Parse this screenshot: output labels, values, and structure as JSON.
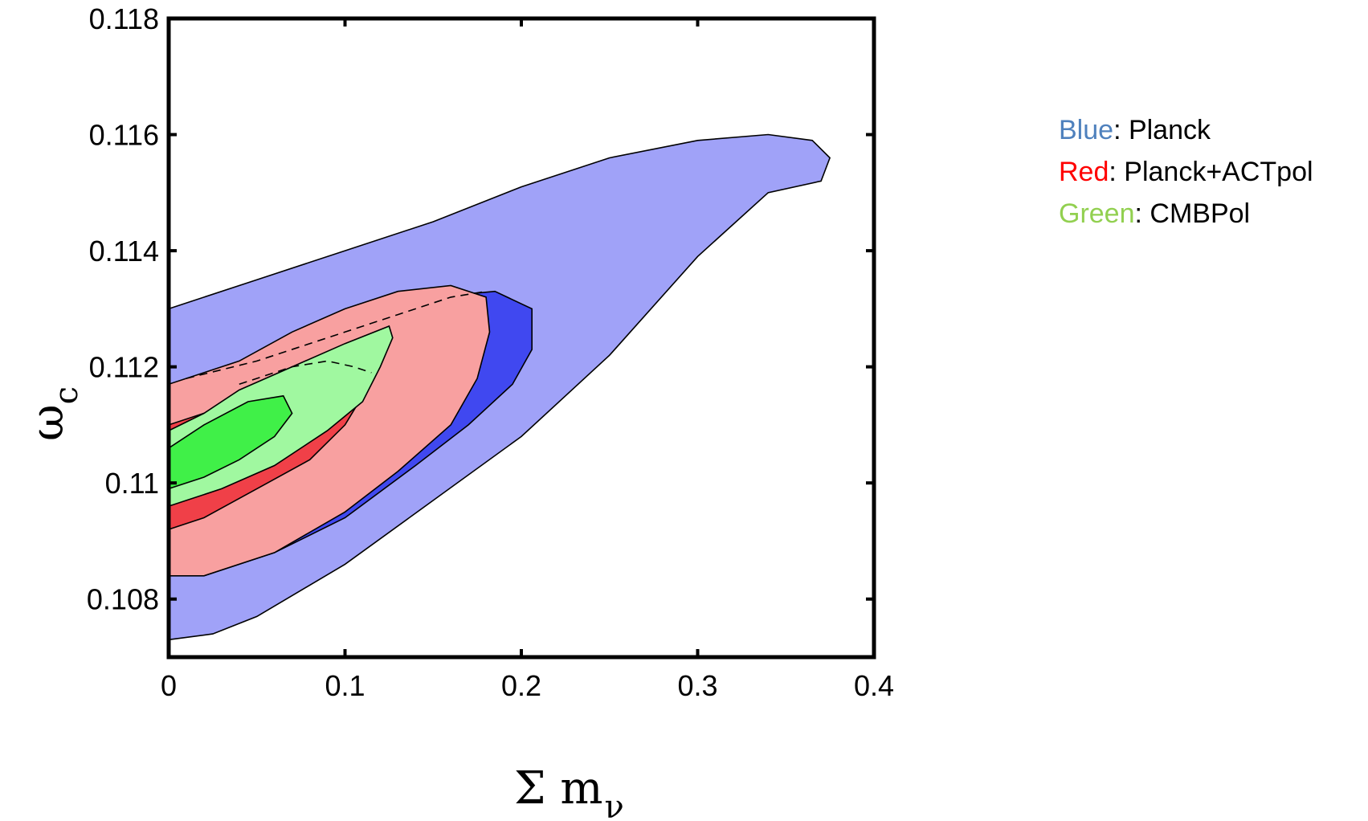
{
  "chart_data": {
    "type": "contour",
    "xlabel": "Σ m",
    "xlabel_sub": "ν",
    "ylabel": "ω",
    "ylabel_sub": "c",
    "xlim": [
      0,
      0.4
    ],
    "ylim": [
      0.107,
      0.118
    ],
    "xticks": [
      0,
      0.1,
      0.2,
      0.3,
      0.4
    ],
    "xtick_labels": [
      "0",
      "0.1",
      "0.2",
      "0.3",
      "0.4"
    ],
    "yticks": [
      0.108,
      0.11,
      0.112,
      0.114,
      0.116,
      0.118
    ],
    "ytick_labels": [
      "0.108",
      "0.11",
      "0.112",
      "0.114",
      "0.116",
      "0.118"
    ],
    "grid": false,
    "legend_placement": "right",
    "series": [
      {
        "name": "Blue",
        "color": "#a0a2f8",
        "level": "outer",
        "contour": [
          [
            0,
            0.1073
          ],
          [
            0.025,
            0.1074
          ],
          [
            0.05,
            0.1077
          ],
          [
            0.1,
            0.1086
          ],
          [
            0.15,
            0.1097
          ],
          [
            0.2,
            0.1108
          ],
          [
            0.25,
            0.1122
          ],
          [
            0.3,
            0.1139
          ],
          [
            0.34,
            0.115
          ],
          [
            0.37,
            0.1152
          ],
          [
            0.375,
            0.1156
          ],
          [
            0.365,
            0.1159
          ],
          [
            0.34,
            0.116
          ],
          [
            0.3,
            0.1159
          ],
          [
            0.25,
            0.1156
          ],
          [
            0.2,
            0.1151
          ],
          [
            0.15,
            0.1145
          ],
          [
            0.1,
            0.114
          ],
          [
            0.05,
            0.1135
          ],
          [
            0,
            0.113
          ]
        ]
      },
      {
        "name": "Blue",
        "color": "#4048f0",
        "level": "inner",
        "contour": [
          [
            0.02,
            0.1084
          ],
          [
            0.06,
            0.1088
          ],
          [
            0.1,
            0.1094
          ],
          [
            0.14,
            0.1103
          ],
          [
            0.17,
            0.111
          ],
          [
            0.195,
            0.1117
          ],
          [
            0.206,
            0.1123
          ],
          [
            0.206,
            0.113
          ],
          [
            0.185,
            0.1133
          ],
          [
            0.15,
            0.1132
          ],
          [
            0.06,
            0.1096
          ]
        ]
      },
      {
        "name": "Red",
        "color": "#f8a0a0",
        "level": "outer",
        "contour": [
          [
            0,
            0.1084
          ],
          [
            0.02,
            0.1084
          ],
          [
            0.06,
            0.1088
          ],
          [
            0.1,
            0.1095
          ],
          [
            0.13,
            0.1102
          ],
          [
            0.16,
            0.111
          ],
          [
            0.175,
            0.1118
          ],
          [
            0.182,
            0.1126
          ],
          [
            0.18,
            0.1132
          ],
          [
            0.16,
            0.1134
          ],
          [
            0.13,
            0.1133
          ],
          [
            0.1,
            0.113
          ],
          [
            0.07,
            0.1126
          ],
          [
            0.04,
            0.1121
          ],
          [
            0.02,
            0.1119
          ],
          [
            0,
            0.1117
          ]
        ]
      },
      {
        "name": "Red",
        "color": "#f04048",
        "level": "inner",
        "contour": [
          [
            0,
            0.1092
          ],
          [
            0.02,
            0.1094
          ],
          [
            0.05,
            0.1099
          ],
          [
            0.08,
            0.1104
          ],
          [
            0.1,
            0.111
          ],
          [
            0.11,
            0.1115
          ],
          [
            0.115,
            0.112
          ],
          [
            0.11,
            0.1122
          ],
          [
            0.09,
            0.112
          ],
          [
            0.06,
            0.1117
          ],
          [
            0.03,
            0.1113
          ],
          [
            0,
            0.111
          ]
        ]
      },
      {
        "name": "Green",
        "color": "#a0f8a0",
        "level": "outer",
        "contour": [
          [
            0,
            0.1096
          ],
          [
            0.03,
            0.1099
          ],
          [
            0.06,
            0.1103
          ],
          [
            0.09,
            0.1109
          ],
          [
            0.11,
            0.1114
          ],
          [
            0.12,
            0.112
          ],
          [
            0.127,
            0.1125
          ],
          [
            0.125,
            0.1127
          ],
          [
            0.1,
            0.1124
          ],
          [
            0.07,
            0.112
          ],
          [
            0.04,
            0.1116
          ],
          [
            0.02,
            0.1112
          ],
          [
            0,
            0.1109
          ]
        ]
      },
      {
        "name": "Green",
        "color": "#40f048",
        "level": "inner",
        "contour": [
          [
            0,
            0.1099
          ],
          [
            0.02,
            0.1101
          ],
          [
            0.04,
            0.1104
          ],
          [
            0.06,
            0.1108
          ],
          [
            0.07,
            0.1112
          ],
          [
            0.065,
            0.1115
          ],
          [
            0.045,
            0.1114
          ],
          [
            0.02,
            0.111
          ],
          [
            0,
            0.1106
          ]
        ]
      }
    ],
    "dashed_curves": [
      [
        [
          0.01,
          0.1118
        ],
        [
          0.05,
          0.1121
        ],
        [
          0.1,
          0.1126
        ],
        [
          0.13,
          0.1129
        ],
        [
          0.16,
          0.1132
        ],
        [
          0.18,
          0.1133
        ]
      ],
      [
        [
          0.04,
          0.1117
        ],
        [
          0.07,
          0.112
        ],
        [
          0.09,
          0.1121
        ],
        [
          0.105,
          0.112
        ],
        [
          0.115,
          0.1119
        ]
      ]
    ]
  },
  "legend": [
    {
      "name": "Blue",
      "rest": ": Planck",
      "color": "#4f81bd"
    },
    {
      "name": "Red",
      "rest": ": Planck+ACTpol",
      "color": "#ff0000"
    },
    {
      "name": "Green",
      "rest": ": CMBPol",
      "color": "#92d050"
    }
  ]
}
